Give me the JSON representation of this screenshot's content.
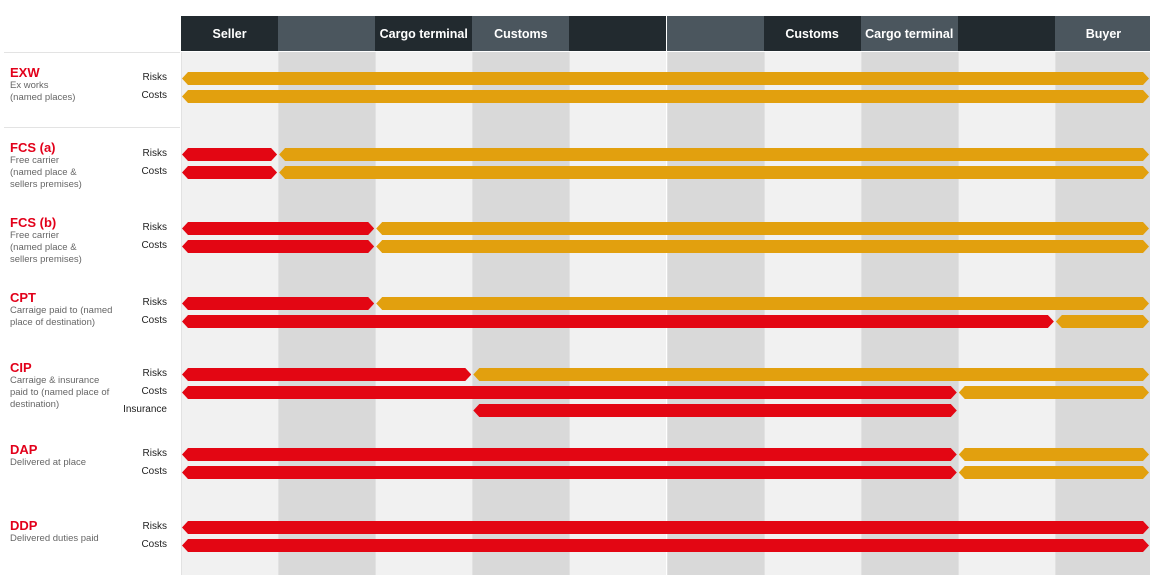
{
  "colors": {
    "seller": "#e30613",
    "buyer": "#e2a00e",
    "header_dark": "#222a2f",
    "header_medium": "#4b565e",
    "col_light": "#f1f1f1",
    "col_dark": "#d9d9d9",
    "term_code": "#e2001a"
  },
  "stages": [
    {
      "label": "Seller",
      "tone": "dark"
    },
    {
      "label": "",
      "tone": "medium"
    },
    {
      "label": "Cargo terminal",
      "tone": "dark"
    },
    {
      "label": "Customs",
      "tone": "medium"
    },
    {
      "label": "",
      "tone": "dark"
    },
    {
      "label": "",
      "tone": "medium"
    },
    {
      "label": "Customs",
      "tone": "dark"
    },
    {
      "label": "Cargo terminal",
      "tone": "medium"
    },
    {
      "label": "",
      "tone": "dark"
    },
    {
      "label": "Buyer",
      "tone": "medium"
    }
  ],
  "terms": [
    {
      "code": "EXW",
      "description": [
        "Ex works",
        "(named places)"
      ],
      "bars": [
        {
          "label": "Risks",
          "segments": [
            {
              "party": "buyer",
              "from": 0,
              "to": 10
            }
          ]
        },
        {
          "label": "Costs",
          "segments": [
            {
              "party": "buyer",
              "from": 0,
              "to": 10
            }
          ]
        }
      ]
    },
    {
      "code": "FCS (a)",
      "description": [
        "Free carrier",
        "(named place &",
        "sellers premises)"
      ],
      "bars": [
        {
          "label": "Risks",
          "segments": [
            {
              "party": "seller",
              "from": 0,
              "to": 1
            },
            {
              "party": "buyer",
              "from": 1,
              "to": 10
            }
          ]
        },
        {
          "label": "Costs",
          "segments": [
            {
              "party": "seller",
              "from": 0,
              "to": 1
            },
            {
              "party": "buyer",
              "from": 1,
              "to": 10
            }
          ]
        }
      ]
    },
    {
      "code": "FCS (b)",
      "description": [
        "Free carrier",
        "(named place &",
        "sellers premises)"
      ],
      "bars": [
        {
          "label": "Risks",
          "segments": [
            {
              "party": "seller",
              "from": 0,
              "to": 2
            },
            {
              "party": "buyer",
              "from": 2,
              "to": 10
            }
          ]
        },
        {
          "label": "Costs",
          "segments": [
            {
              "party": "seller",
              "from": 0,
              "to": 2
            },
            {
              "party": "buyer",
              "from": 2,
              "to": 10
            }
          ]
        }
      ]
    },
    {
      "code": "CPT",
      "description": [
        "Carraige paid to (named",
        "place of destination)"
      ],
      "bars": [
        {
          "label": "Risks",
          "segments": [
            {
              "party": "seller",
              "from": 0,
              "to": 2
            },
            {
              "party": "buyer",
              "from": 2,
              "to": 10
            }
          ]
        },
        {
          "label": "Costs",
          "segments": [
            {
              "party": "seller",
              "from": 0,
              "to": 9
            },
            {
              "party": "buyer",
              "from": 9,
              "to": 10
            }
          ]
        }
      ]
    },
    {
      "code": "CIP",
      "description": [
        "Carraige & insurance",
        "paid to (named place of",
        "destination)"
      ],
      "bars": [
        {
          "label": "Risks",
          "segments": [
            {
              "party": "seller",
              "from": 0,
              "to": 3
            },
            {
              "party": "buyer",
              "from": 3,
              "to": 10
            }
          ]
        },
        {
          "label": "Costs",
          "segments": [
            {
              "party": "seller",
              "from": 0,
              "to": 8
            },
            {
              "party": "buyer",
              "from": 8,
              "to": 10
            }
          ]
        },
        {
          "label": "Insurance",
          "segments": [
            {
              "party": "seller",
              "from": 3,
              "to": 8
            }
          ]
        }
      ]
    },
    {
      "code": "DAP",
      "description": [
        "Delivered at place"
      ],
      "bars": [
        {
          "label": "Risks",
          "segments": [
            {
              "party": "seller",
              "from": 0,
              "to": 8
            },
            {
              "party": "buyer",
              "from": 8,
              "to": 10
            }
          ]
        },
        {
          "label": "Costs",
          "segments": [
            {
              "party": "seller",
              "from": 0,
              "to": 8
            },
            {
              "party": "buyer",
              "from": 8,
              "to": 10
            }
          ]
        }
      ]
    },
    {
      "code": "DDP",
      "description": [
        "Delivered duties paid"
      ],
      "bars": [
        {
          "label": "Risks",
          "segments": [
            {
              "party": "seller",
              "from": 0,
              "to": 10
            }
          ]
        },
        {
          "label": "Costs",
          "segments": [
            {
              "party": "seller",
              "from": 0,
              "to": 10
            }
          ]
        }
      ]
    }
  ]
}
